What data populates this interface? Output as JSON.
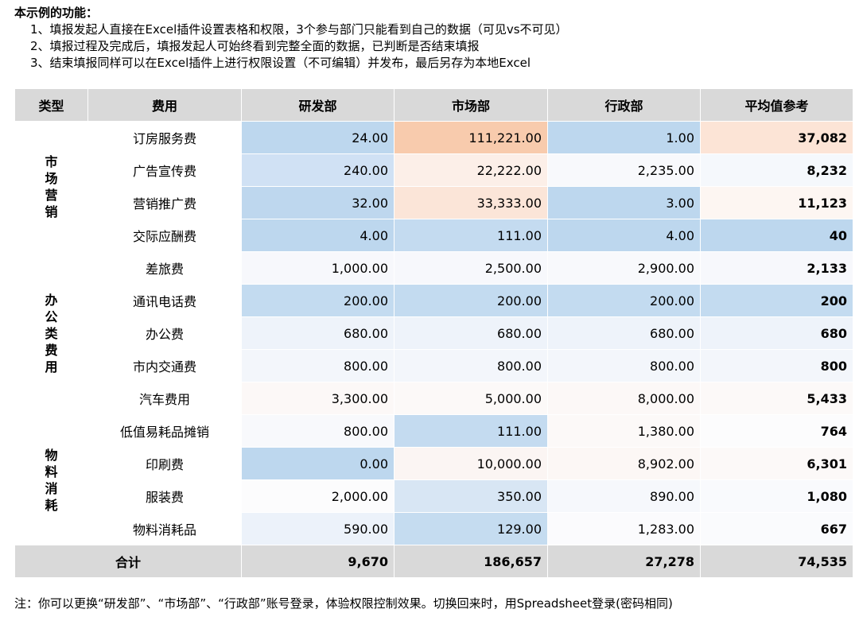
{
  "intro": {
    "title": "本示例的功能：",
    "lines": [
      "1、填报发起人直接在Excel插件设置表格和权限，3个参与部门只能看到自己的数据（可见vs不可见）",
      "2、填报过程及完成后，填报发起人可始终看到完整全面的数据，已判断是否结束填报",
      "3、结束填报同样可以在Excel插件上进行权限设置（不可编辑）并发布，最后另存为本地Excel"
    ]
  },
  "table": {
    "headers": [
      "类型",
      "费用",
      "研发部",
      "市场部",
      "行政部",
      "平均值参考"
    ],
    "groups": [
      {
        "category": "市场营销",
        "rows": [
          {
            "item": "订房服务费",
            "values": [
              "24.00",
              "111,221.00",
              "1.00"
            ],
            "avg": "37,082",
            "colors": [
              "#bdd7ee",
              "#f8cbad",
              "#bdd7ee",
              "#fce4d6"
            ]
          },
          {
            "item": "广告宣传费",
            "values": [
              "240.00",
              "22,222.00",
              "2,235.00"
            ],
            "avg": "8,232",
            "colors": [
              "#d0e1f4",
              "#fcefe8",
              "#f8f9fc",
              "#f5f8fc"
            ]
          },
          {
            "item": "营销推广费",
            "values": [
              "32.00",
              "33,333.00",
              "3.00"
            ],
            "avg": "11,123",
            "colors": [
              "#bed7ee",
              "#fbe5d8",
              "#bdd7ee",
              "#fdf6f2"
            ]
          },
          {
            "item": "交际应酬费",
            "values": [
              "4.00",
              "111.00",
              "4.00"
            ],
            "avg": "40",
            "colors": [
              "#bdd7ee",
              "#c4dbf0",
              "#bdd7ee",
              "#bdd7ee"
            ]
          }
        ]
      },
      {
        "category": "办公类费用",
        "rows": [
          {
            "item": "差旅费",
            "values": [
              "1,000.00",
              "2,500.00",
              "2,900.00"
            ],
            "avg": "2,133",
            "colors": [
              "#f7f8fc",
              "#f7f8fc",
              "#f8f9fc",
              "#f7f8fc"
            ]
          },
          {
            "item": "通讯电话费",
            "values": [
              "200.00",
              "200.00",
              "200.00"
            ],
            "avg": "200",
            "colors": [
              "#c3dbf0",
              "#c3dbf0",
              "#c3dbf0",
              "#c3dbf0"
            ]
          },
          {
            "item": "办公费",
            "values": [
              "680.00",
              "680.00",
              "680.00"
            ],
            "avg": "680",
            "colors": [
              "#eef3fa",
              "#eef3fa",
              "#eef3fa",
              "#eef3fa"
            ]
          },
          {
            "item": "市内交通费",
            "values": [
              "800.00",
              "800.00",
              "800.00"
            ],
            "avg": "800",
            "colors": [
              "#f3f6fb",
              "#f3f6fb",
              "#f3f6fb",
              "#f3f6fb"
            ]
          },
          {
            "item": "汽车费用",
            "values": [
              "3,300.00",
              "5,000.00",
              "8,000.00"
            ],
            "avg": "5,433",
            "colors": [
              "#fcf8f7",
              "#fcf9f8",
              "#fcf8f7",
              "#fcf9f8"
            ]
          }
        ]
      },
      {
        "category": "物料消耗",
        "rows": [
          {
            "item": "低值易耗品摊销",
            "values": [
              "800.00",
              "111.00",
              "1,380.00"
            ],
            "avg": "764",
            "colors": [
              "#f8f9fc",
              "#c4dbf0",
              "#fcf9f8",
              "#fcfcfd"
            ]
          },
          {
            "item": "印刷费",
            "values": [
              "0.00",
              "10,000.00",
              "8,902.00"
            ],
            "avg": "6,301",
            "colors": [
              "#bdd7ee",
              "#fbf5f3",
              "#fcf7f5",
              "#fcf9f8"
            ]
          },
          {
            "item": "服装费",
            "values": [
              "2,000.00",
              "350.00",
              "890.00"
            ],
            "avg": "1,080",
            "colors": [
              "#fcfcfd",
              "#d8e6f4",
              "#f6f8fc",
              "#f9fafd"
            ]
          },
          {
            "item": "物料消耗品",
            "values": [
              "590.00",
              "129.00",
              "1,283.00"
            ],
            "avg": "667",
            "colors": [
              "#ecf2fa",
              "#c5dcf0",
              "#fbfbfd",
              "#fafbfd"
            ]
          }
        ]
      }
    ],
    "total": {
      "label": "合计",
      "values": [
        "9,670",
        "186,657",
        "27,278"
      ],
      "avg": "74,535"
    }
  },
  "note": "注：你可以更换“研发部”、“市场部”、“行政部”账号登录，体验权限控制效果。切换回来时，用Spreadsheet登录(密码相同)"
}
